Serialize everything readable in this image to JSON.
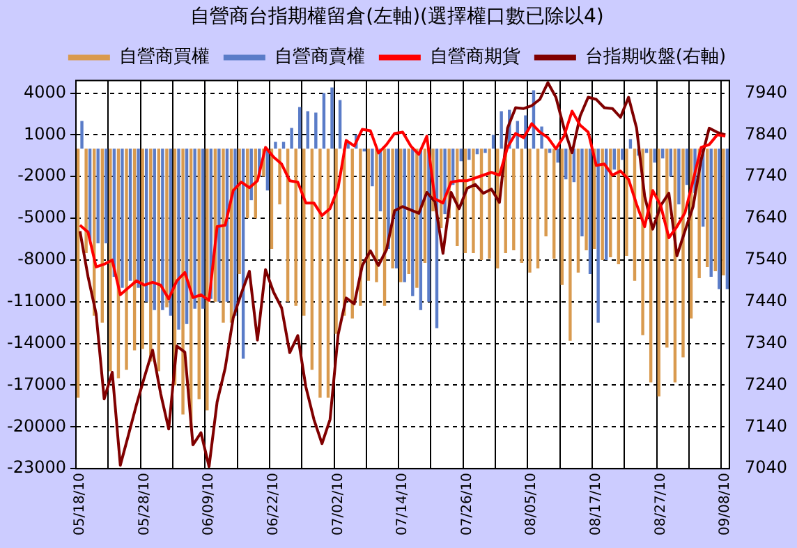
{
  "chart_data": {
    "type": "bar",
    "title": "自營商台指期權留倉(左軸)(選擇權口數已除以4)",
    "categories": [
      "05/18/10",
      null,
      null,
      null,
      null,
      null,
      null,
      null,
      "05/28/10",
      null,
      null,
      null,
      null,
      null,
      null,
      null,
      "06/09/10",
      null,
      null,
      null,
      null,
      null,
      null,
      null,
      "06/22/10",
      null,
      null,
      null,
      null,
      null,
      null,
      null,
      "07/02/10",
      null,
      null,
      null,
      null,
      null,
      null,
      null,
      "07/14/10",
      null,
      null,
      null,
      null,
      null,
      null,
      null,
      "07/26/10",
      null,
      null,
      null,
      null,
      null,
      null,
      null,
      "08/05/10",
      null,
      null,
      null,
      null,
      null,
      null,
      null,
      "08/17/10",
      null,
      null,
      null,
      null,
      null,
      null,
      null,
      "08/27/10",
      null,
      null,
      null,
      null,
      null,
      null,
      null,
      "09/08/10"
    ],
    "series": [
      {
        "name": "自營商買權",
        "color": "#d99a4e",
        "values": [
          -17900,
          -7500,
          -12000,
          -12500,
          -16000,
          -16500,
          -15900,
          -14500,
          -14400,
          -15300,
          -16000,
          -11400,
          -17000,
          -19100,
          -20000,
          -18000,
          -18800,
          -11000,
          -12500,
          -12500,
          -9000,
          -5000,
          -5000,
          -2000,
          -7200,
          -4000,
          -11000,
          -11300,
          -12000,
          -15900,
          -17900,
          -17900,
          -13300,
          -12000,
          -12200,
          -11300,
          -9500,
          -9600,
          -11300,
          -8600,
          -9600,
          -9000,
          -10000,
          -8200,
          -4500,
          -5700,
          -5000,
          -7000,
          -7500,
          -7500,
          -8000,
          -7900,
          -8600,
          -7500,
          -7300,
          -8200,
          -8900,
          -8600,
          -6300,
          -7900,
          -9800,
          -13800,
          -8900,
          -7300,
          -7200,
          -8000,
          -7800,
          -8300,
          -7700,
          -9500,
          -13400,
          -16800,
          -17800,
          -14300,
          -16800,
          -15000,
          -12200,
          -9300,
          -8500,
          -8800,
          -9100
        ]
      },
      {
        "name": "自營商賣權",
        "color": "#5a7cc8",
        "values": [
          2000,
          -6600,
          -6800,
          -6800,
          -9200,
          -10000,
          -9500,
          -10000,
          -11000,
          -11600,
          -11600,
          -12000,
          -13000,
          -12600,
          -11500,
          -11500,
          -10800,
          -11000,
          -11000,
          -12000,
          -15100,
          -3700,
          -2000,
          -3000,
          500,
          500,
          1500,
          3000,
          2700,
          2600,
          4000,
          4400,
          3500,
          500,
          1000,
          -200,
          -2700,
          -4500,
          -7200,
          -8600,
          -9600,
          -10600,
          -11600,
          -11000,
          -12900,
          -4700,
          -2600,
          -900,
          -800,
          -400,
          -300,
          1000,
          2700,
          2800,
          2000,
          2400,
          4200,
          1600,
          -300,
          -1000,
          -2200,
          -2400,
          -6300,
          -9000,
          -12500,
          -8000,
          -1500,
          -800,
          700,
          -500,
          -300,
          -1000,
          -700,
          -2000,
          -4000,
          -2600,
          -3200,
          -5600,
          -9200,
          -10100,
          -10100
        ]
      },
      {
        "name": "自營商期貨",
        "type": "line",
        "color": "#ff0000",
        "values": [
          -5500,
          -6000,
          -8500,
          -8300,
          -8000,
          -10500,
          -10000,
          -9500,
          -9800,
          -9600,
          -9800,
          -10800,
          -9500,
          -8900,
          -10700,
          -10500,
          -10900,
          -5600,
          -5500,
          -3000,
          -2400,
          -2800,
          -2300,
          100,
          -600,
          -1100,
          -2300,
          -2400,
          -3900,
          -3900,
          -4800,
          -4300,
          -2800,
          600,
          200,
          1400,
          1300,
          -300,
          300,
          1100,
          1200,
          200,
          -400,
          900,
          -3600,
          -3900,
          -2400,
          -2300,
          -2300,
          -2100,
          -1900,
          -1700,
          -1900,
          100,
          1100,
          800,
          1800,
          1200,
          800,
          0,
          900,
          2700,
          1700,
          1200,
          -1200,
          -1100,
          -1900,
          -1600,
          -2200,
          -4000,
          -5600,
          -3000,
          -4100,
          -6400,
          -5600,
          -4600,
          -2300,
          100,
          300,
          1000,
          900
        ]
      },
      {
        "name": "台指期收盤(右軸)",
        "type": "line",
        "axis": "y2",
        "color": "#800000",
        "values": [
          7609,
          7500,
          7411,
          7207,
          7271,
          7048,
          7120,
          7193,
          7260,
          7324,
          7220,
          7135,
          7334,
          7319,
          7097,
          7126,
          7045,
          7200,
          7281,
          7402,
          7460,
          7513,
          7348,
          7517,
          7463,
          7425,
          7318,
          7359,
          7236,
          7158,
          7100,
          7158,
          7361,
          7449,
          7435,
          7527,
          7562,
          7527,
          7565,
          7658,
          7668,
          7660,
          7652,
          7702,
          7680,
          7556,
          7702,
          7663,
          7712,
          7721,
          7700,
          7710,
          7678,
          7856,
          7905,
          7903,
          7910,
          7925,
          7965,
          7930,
          7856,
          7797,
          7885,
          7930,
          7925,
          7905,
          7903,
          7882,
          7930,
          7856,
          7693,
          7614,
          7671,
          7700,
          7550,
          7610,
          7668,
          7780,
          7856,
          7846,
          7840
        ]
      }
    ],
    "ylim": [
      -23000,
      4900
    ],
    "yticks": [
      -23000,
      -20000,
      -17000,
      -14000,
      -11000,
      -8000,
      -5000,
      -2000,
      1000,
      4000
    ],
    "y2lim": [
      7040,
      7970
    ],
    "y2ticks": [
      7040,
      7140,
      7240,
      7340,
      7440,
      7540,
      7640,
      7740,
      7840,
      7940
    ],
    "grid": true,
    "legend": "top"
  }
}
